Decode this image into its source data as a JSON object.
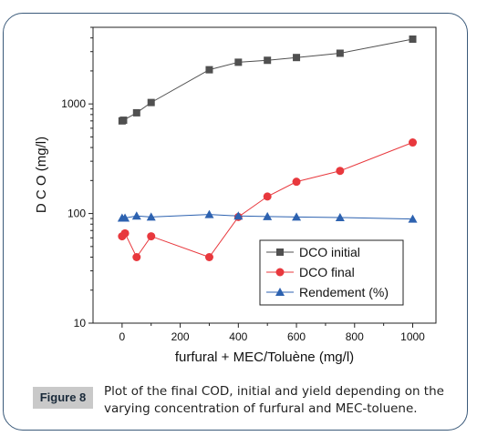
{
  "caption": {
    "label": "Figure 8",
    "text": "Plot of the final COD, initial and yield depending on the varying concentration of furfural and MEC-toluene."
  },
  "chart_data": {
    "type": "line",
    "xlabel": "furfural + MEC/Toluène (mg/l)",
    "ylabel": "D C O (mg/l)",
    "xlim": [
      -100,
      1080
    ],
    "ylim": [
      10,
      5000
    ],
    "yscale": "log",
    "xticks": [
      0,
      200,
      400,
      600,
      800,
      1000
    ],
    "yticks": [
      10,
      100,
      1000
    ],
    "legend_position": "bottom-right",
    "series": [
      {
        "name": "DCO initial",
        "color": "#505050",
        "marker": "square",
        "x": [
          0,
          5,
          50,
          100,
          300,
          400,
          500,
          600,
          750,
          1000
        ],
        "y": [
          700,
          710,
          830,
          1030,
          2050,
          2400,
          2500,
          2650,
          2900,
          3900
        ]
      },
      {
        "name": "DCO final",
        "color": "#e8383d",
        "marker": "circle",
        "x": [
          0,
          10,
          50,
          100,
          300,
          400,
          500,
          600,
          750,
          1000
        ],
        "y": [
          62,
          66,
          40,
          62,
          40,
          93,
          143,
          195,
          245,
          445
        ]
      },
      {
        "name": "Rendement (%)",
        "color": "#2d62b0",
        "marker": "triangle",
        "x": [
          0,
          10,
          50,
          100,
          300,
          400,
          500,
          600,
          750,
          1000
        ],
        "y": [
          91,
          91,
          95,
          93,
          98,
          95,
          94,
          93,
          92,
          89
        ]
      }
    ]
  }
}
